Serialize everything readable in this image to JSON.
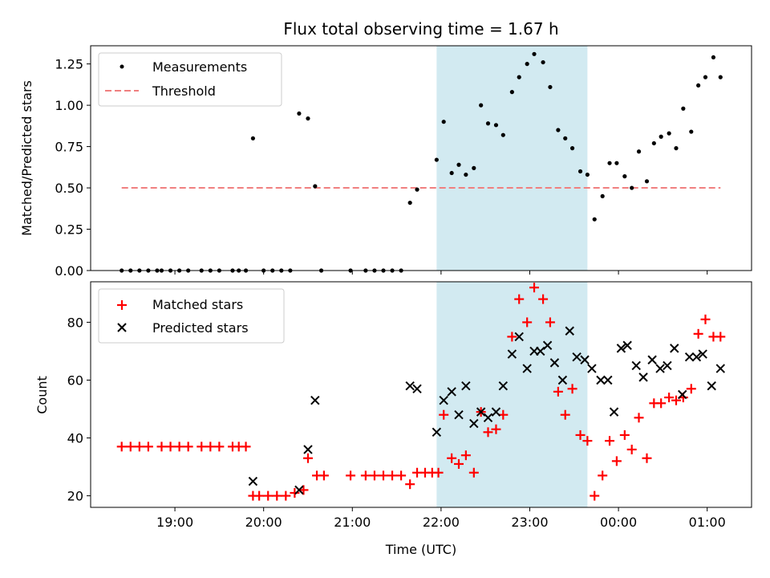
{
  "chart_data": [
    {
      "type": "scatter",
      "title": "Flux total observing time = 1.67 h",
      "ylabel": "Matched/Predicted stars",
      "xlabel": "",
      "ylim": [
        0,
        1.36
      ],
      "y_ticks": [
        "0.00",
        "0.25",
        "0.50",
        "0.75",
        "1.00",
        "1.25"
      ],
      "highlight_span": {
        "start": 21.95,
        "end": 23.65
      },
      "legend": {
        "position": "upper left",
        "entries": [
          "Measurements",
          "Threshold"
        ]
      },
      "threshold": {
        "name": "Threshold",
        "value": 0.5,
        "x_start": 18.4,
        "x_end": 1.15,
        "color": "#f08080"
      },
      "series": [
        {
          "name": "Measurements",
          "color": "#000000",
          "points": [
            [
              18.4,
              0.0
            ],
            [
              18.5,
              0.0
            ],
            [
              18.6,
              0.0
            ],
            [
              18.7,
              0.0
            ],
            [
              18.8,
              0.0
            ],
            [
              18.85,
              0.0
            ],
            [
              18.95,
              0.0
            ],
            [
              19.05,
              0.0
            ],
            [
              19.15,
              0.0
            ],
            [
              19.3,
              0.0
            ],
            [
              19.4,
              0.0
            ],
            [
              19.5,
              0.0
            ],
            [
              19.65,
              0.0
            ],
            [
              19.72,
              0.0
            ],
            [
              19.8,
              0.0
            ],
            [
              19.88,
              0.8
            ],
            [
              20.0,
              0.0
            ],
            [
              20.1,
              0.0
            ],
            [
              20.2,
              0.0
            ],
            [
              20.3,
              0.0
            ],
            [
              20.4,
              0.95
            ],
            [
              20.5,
              0.92
            ],
            [
              20.58,
              0.51
            ],
            [
              20.65,
              0.0
            ],
            [
              20.98,
              0.0
            ],
            [
              21.15,
              0.0
            ],
            [
              21.25,
              0.0
            ],
            [
              21.35,
              0.0
            ],
            [
              21.45,
              0.0
            ],
            [
              21.55,
              0.0
            ],
            [
              21.65,
              0.41
            ],
            [
              21.73,
              0.49
            ],
            [
              21.95,
              0.67
            ],
            [
              22.03,
              0.9
            ],
            [
              22.12,
              0.59
            ],
            [
              22.2,
              0.64
            ],
            [
              22.28,
              0.58
            ],
            [
              22.37,
              0.62
            ],
            [
              22.45,
              1.0
            ],
            [
              22.53,
              0.89
            ],
            [
              22.62,
              0.88
            ],
            [
              22.7,
              0.82
            ],
            [
              22.8,
              1.08
            ],
            [
              22.88,
              1.17
            ],
            [
              22.97,
              1.25
            ],
            [
              23.05,
              1.31
            ],
            [
              23.15,
              1.26
            ],
            [
              23.23,
              1.11
            ],
            [
              23.32,
              0.85
            ],
            [
              23.4,
              0.8
            ],
            [
              23.48,
              0.74
            ],
            [
              23.57,
              0.6
            ],
            [
              23.65,
              0.58
            ],
            [
              23.73,
              0.31
            ],
            [
              23.82,
              0.45
            ],
            [
              23.9,
              0.65
            ],
            [
              23.98,
              0.65
            ],
            [
              0.07,
              0.57
            ],
            [
              0.15,
              0.5
            ],
            [
              0.23,
              0.72
            ],
            [
              0.32,
              0.54
            ],
            [
              0.4,
              0.77
            ],
            [
              0.48,
              0.81
            ],
            [
              0.57,
              0.83
            ],
            [
              0.65,
              0.74
            ],
            [
              0.73,
              0.98
            ],
            [
              0.82,
              0.84
            ],
            [
              0.9,
              1.12
            ],
            [
              0.98,
              1.17
            ],
            [
              1.07,
              1.29
            ],
            [
              1.15,
              1.17
            ]
          ]
        }
      ]
    },
    {
      "type": "scatter",
      "title": "",
      "ylabel": "Count",
      "xlabel": "Time (UTC)",
      "ylim": [
        16,
        94
      ],
      "y_ticks": [
        "20",
        "40",
        "60",
        "80"
      ],
      "x_ticks": [
        "19:00",
        "20:00",
        "21:00",
        "22:00",
        "23:00",
        "00:00",
        "01:00"
      ],
      "x_tick_values": [
        19,
        20,
        21,
        22,
        23,
        24,
        25
      ],
      "highlight_span": {
        "start": 21.95,
        "end": 23.65
      },
      "legend": {
        "position": "upper left",
        "entries": [
          "Matched stars",
          "Predicted stars"
        ]
      },
      "series": [
        {
          "name": "Matched stars",
          "marker": "+",
          "color": "#ff0000",
          "points": [
            [
              18.4,
              37
            ],
            [
              18.5,
              37
            ],
            [
              18.6,
              37
            ],
            [
              18.7,
              37
            ],
            [
              18.85,
              37
            ],
            [
              18.95,
              37
            ],
            [
              19.05,
              37
            ],
            [
              19.15,
              37
            ],
            [
              19.3,
              37
            ],
            [
              19.4,
              37
            ],
            [
              19.5,
              37
            ],
            [
              19.65,
              37
            ],
            [
              19.72,
              37
            ],
            [
              19.8,
              37
            ],
            [
              19.88,
              20
            ],
            [
              19.95,
              20
            ],
            [
              20.05,
              20
            ],
            [
              20.15,
              20
            ],
            [
              20.25,
              20
            ],
            [
              20.35,
              21
            ],
            [
              20.45,
              22
            ],
            [
              20.5,
              33
            ],
            [
              20.6,
              27
            ],
            [
              20.68,
              27
            ],
            [
              20.98,
              27
            ],
            [
              21.15,
              27
            ],
            [
              21.25,
              27
            ],
            [
              21.35,
              27
            ],
            [
              21.45,
              27
            ],
            [
              21.55,
              27
            ],
            [
              21.65,
              24
            ],
            [
              21.73,
              28
            ],
            [
              21.82,
              28
            ],
            [
              21.9,
              28
            ],
            [
              21.97,
              28
            ],
            [
              22.03,
              48
            ],
            [
              22.12,
              33
            ],
            [
              22.2,
              31
            ],
            [
              22.28,
              34
            ],
            [
              22.37,
              28
            ],
            [
              22.45,
              49
            ],
            [
              22.53,
              42
            ],
            [
              22.62,
              43
            ],
            [
              22.7,
              48
            ],
            [
              22.8,
              75
            ],
            [
              22.88,
              88
            ],
            [
              22.97,
              80
            ],
            [
              23.05,
              92
            ],
            [
              23.15,
              88
            ],
            [
              23.23,
              80
            ],
            [
              23.32,
              56
            ],
            [
              23.4,
              48
            ],
            [
              23.48,
              57
            ],
            [
              23.57,
              41
            ],
            [
              23.65,
              39
            ],
            [
              23.73,
              20
            ],
            [
              23.82,
              27
            ],
            [
              23.9,
              39
            ],
            [
              23.98,
              32
            ],
            [
              0.07,
              41
            ],
            [
              0.15,
              36
            ],
            [
              0.23,
              47
            ],
            [
              0.32,
              33
            ],
            [
              0.4,
              52
            ],
            [
              0.48,
              52
            ],
            [
              0.57,
              54
            ],
            [
              0.65,
              53
            ],
            [
              0.73,
              54
            ],
            [
              0.82,
              57
            ],
            [
              0.9,
              76
            ],
            [
              0.98,
              81
            ],
            [
              1.07,
              75
            ],
            [
              1.15,
              75
            ]
          ]
        },
        {
          "name": "Predicted stars",
          "marker": "x",
          "color": "#000000",
          "points": [
            [
              19.88,
              25
            ],
            [
              20.4,
              22
            ],
            [
              20.5,
              36
            ],
            [
              20.58,
              53
            ],
            [
              21.65,
              58
            ],
            [
              21.73,
              57
            ],
            [
              21.95,
              42
            ],
            [
              22.03,
              53
            ],
            [
              22.12,
              56
            ],
            [
              22.2,
              48
            ],
            [
              22.28,
              58
            ],
            [
              22.37,
              45
            ],
            [
              22.45,
              49
            ],
            [
              22.53,
              47
            ],
            [
              22.62,
              49
            ],
            [
              22.7,
              58
            ],
            [
              22.8,
              69
            ],
            [
              22.88,
              75
            ],
            [
              22.97,
              64
            ],
            [
              23.05,
              70
            ],
            [
              23.12,
              70
            ],
            [
              23.2,
              72
            ],
            [
              23.28,
              66
            ],
            [
              23.37,
              60
            ],
            [
              23.45,
              77
            ],
            [
              23.53,
              68
            ],
            [
              23.62,
              67
            ],
            [
              23.7,
              64
            ],
            [
              23.8,
              60
            ],
            [
              23.88,
              60
            ],
            [
              23.95,
              49
            ],
            [
              0.03,
              71
            ],
            [
              0.1,
              72
            ],
            [
              0.2,
              65
            ],
            [
              0.28,
              61
            ],
            [
              0.38,
              67
            ],
            [
              0.47,
              64
            ],
            [
              0.55,
              65
            ],
            [
              0.63,
              71
            ],
            [
              0.72,
              55
            ],
            [
              0.8,
              68
            ],
            [
              0.88,
              68
            ],
            [
              0.95,
              69
            ],
            [
              1.05,
              58
            ],
            [
              1.15,
              64
            ]
          ]
        }
      ]
    }
  ]
}
